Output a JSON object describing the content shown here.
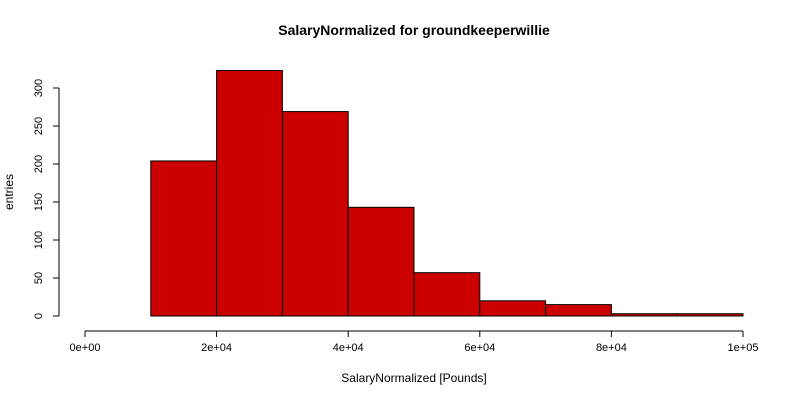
{
  "chart_data": {
    "type": "bar",
    "title": "SalaryNormalized for groundkeeperwillie",
    "xlabel": "SalaryNormalized [Pounds]",
    "ylabel": "entries",
    "bins": [
      {
        "x0": 0,
        "x1": 10000,
        "value": 0
      },
      {
        "x0": 10000,
        "x1": 20000,
        "value": 204
      },
      {
        "x0": 20000,
        "x1": 30000,
        "value": 323
      },
      {
        "x0": 30000,
        "x1": 40000,
        "value": 269
      },
      {
        "x0": 40000,
        "x1": 50000,
        "value": 143
      },
      {
        "x0": 50000,
        "x1": 60000,
        "value": 57
      },
      {
        "x0": 60000,
        "x1": 70000,
        "value": 20
      },
      {
        "x0": 70000,
        "x1": 80000,
        "value": 15
      },
      {
        "x0": 80000,
        "x1": 90000,
        "value": 3
      },
      {
        "x0": 90000,
        "x1": 100000,
        "value": 3
      }
    ],
    "xlim": [
      0,
      100000
    ],
    "ylim": [
      0,
      330
    ],
    "xticks": [
      {
        "value": 0,
        "label": "0e+00"
      },
      {
        "value": 20000,
        "label": "2e+04"
      },
      {
        "value": 40000,
        "label": "4e+04"
      },
      {
        "value": 60000,
        "label": "6e+04"
      },
      {
        "value": 80000,
        "label": "8e+04"
      },
      {
        "value": 100000,
        "label": "1e+05"
      }
    ],
    "yticks": [
      {
        "value": 0,
        "label": "0"
      },
      {
        "value": 50,
        "label": "50"
      },
      {
        "value": 100,
        "label": "100"
      },
      {
        "value": 150,
        "label": "150"
      },
      {
        "value": 200,
        "label": "200"
      },
      {
        "value": 250,
        "label": "250"
      },
      {
        "value": 300,
        "label": "300"
      }
    ],
    "bar_color": "#cc0000",
    "grid": false
  }
}
